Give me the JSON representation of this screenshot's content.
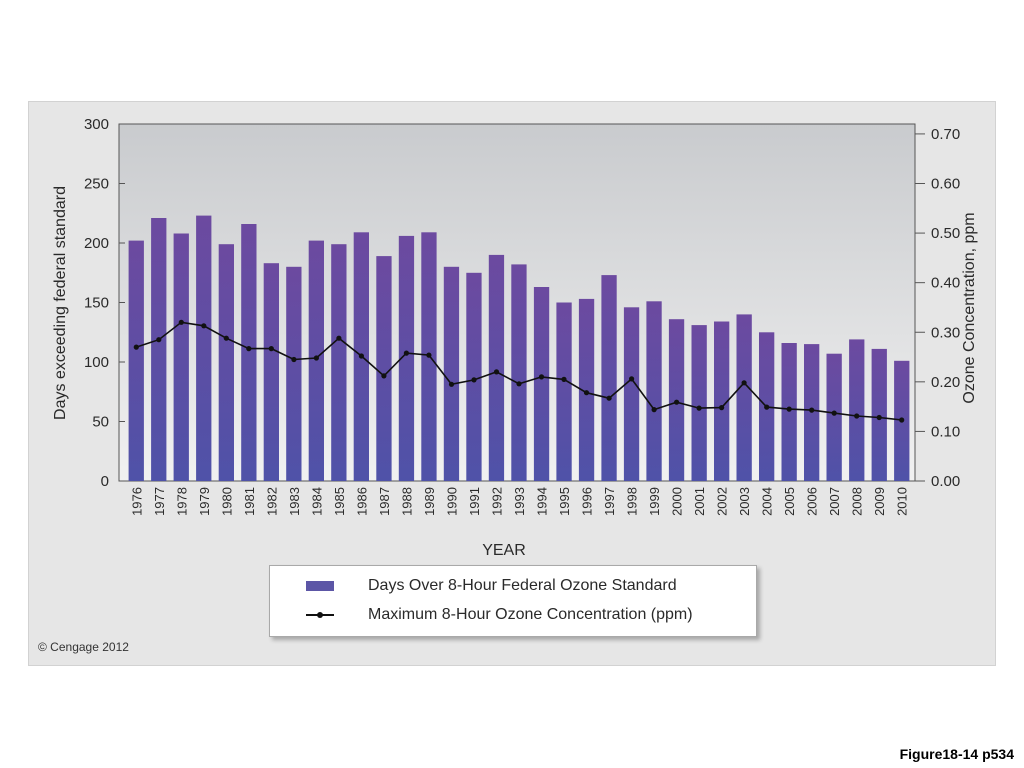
{
  "chart_data": {
    "type": "bar",
    "title": "",
    "xlabel": "YEAR",
    "ylabel": "Days exceeding federal standard",
    "y2label": "Ozone Concentration, ppm",
    "ylim": [
      0,
      300
    ],
    "y2lim": [
      0,
      0.72
    ],
    "yticks": [
      "0",
      "50",
      "100",
      "150",
      "200",
      "250",
      "300"
    ],
    "y2ticks": [
      "0.00",
      "0.10",
      "0.20",
      "0.30",
      "0.40",
      "0.50",
      "0.60",
      "0.70"
    ],
    "grid": false,
    "legend_position": "bottom-center",
    "categories": [
      "1976",
      "1977",
      "1978",
      "1979",
      "1980",
      "1981",
      "1982",
      "1983",
      "1984",
      "1985",
      "1986",
      "1987",
      "1988",
      "1989",
      "1990",
      "1991",
      "1992",
      "1993",
      "1994",
      "1995",
      "1996",
      "1997",
      "1998",
      "1999",
      "2000",
      "2001",
      "2002",
      "2003",
      "2004",
      "2005",
      "2006",
      "2007",
      "2008",
      "2009",
      "2010"
    ],
    "series": [
      {
        "name": "Days Over 8-Hour Federal Ozone Standard",
        "type": "bar",
        "axis": "left",
        "color": "#5c56a6",
        "values": [
          202,
          221,
          208,
          223,
          199,
          216,
          183,
          180,
          202,
          199,
          209,
          189,
          206,
          209,
          180,
          175,
          190,
          182,
          163,
          150,
          153,
          173,
          146,
          151,
          136,
          131,
          134,
          140,
          125,
          116,
          115,
          107,
          119,
          111,
          101
        ]
      },
      {
        "name": "Maximum 8-Hour Ozone Concentration (ppm)",
        "type": "line",
        "axis": "right",
        "color": "#111111",
        "values": [
          0.27,
          0.285,
          0.32,
          0.313,
          0.288,
          0.267,
          0.267,
          0.245,
          0.248,
          0.288,
          0.252,
          0.212,
          0.258,
          0.254,
          0.195,
          0.204,
          0.22,
          0.196,
          0.21,
          0.205,
          0.178,
          0.167,
          0.206,
          0.144,
          0.159,
          0.147,
          0.148,
          0.198,
          0.149,
          0.145,
          0.143,
          0.137,
          0.131,
          0.128,
          0.123
        ]
      }
    ]
  },
  "legend": {
    "bar_label": "Days Over 8-Hour Federal Ozone Standard",
    "line_label": "Maximum 8-Hour Ozone Concentration (ppm)"
  },
  "copyright": "© Cengage 2012",
  "figure_label": "Figure18-14 p534"
}
